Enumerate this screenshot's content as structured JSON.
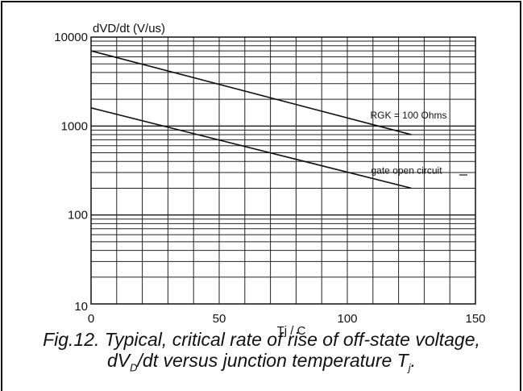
{
  "chart_data": {
    "type": "line",
    "title": "",
    "ylabel": "dVD/dt (V/us)",
    "xlabel": "Tj / C",
    "xlim": [
      0,
      150
    ],
    "ylim": [
      10,
      10000
    ],
    "y_scale": "log",
    "grid": true,
    "x_ticks": [
      "0",
      "50",
      "100",
      "150"
    ],
    "y_ticks": [
      "10",
      "100",
      "1000",
      "10000"
    ],
    "series": [
      {
        "name": "RGK = 100 Ohms",
        "x": [
          0,
          125
        ],
        "y": [
          7000,
          800
        ]
      },
      {
        "name": "gate open circuit",
        "x": [
          0,
          125
        ],
        "y": [
          1600,
          200
        ]
      }
    ]
  },
  "caption": {
    "line1": "Fig.12.  Typical, critical rate of rise of off-state voltage,",
    "line2_a": "dV",
    "line2_sub": "D",
    "line2_b": "/dt versus junction temperature T",
    "line2_sub2": "j",
    "line2_c": "."
  }
}
